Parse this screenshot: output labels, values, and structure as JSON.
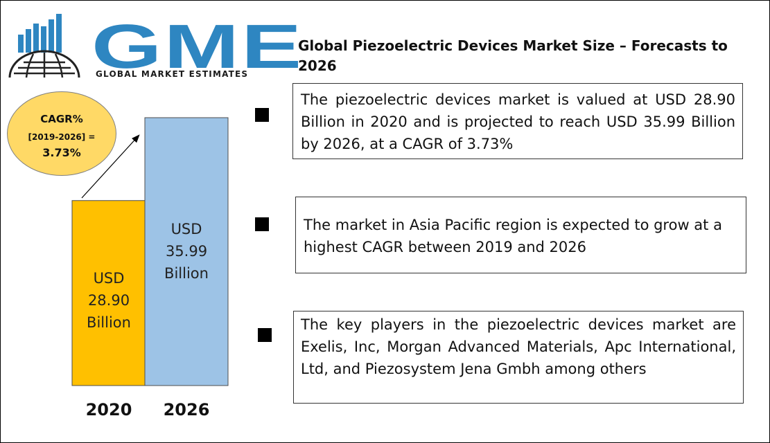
{
  "logo": {
    "wordmark": "GME",
    "tagline": "GLOBAL MARKET ESTIMATES",
    "brand_color": "#2e86c1"
  },
  "title": "Global Piezoelectric Devices Market Size – Forecasts to 2026",
  "cagr": {
    "label": "CAGR%",
    "period": "[2019-2026] =",
    "value": "3.73%",
    "color": "#ffd966"
  },
  "info_points": [
    "The piezoelectric devices market is valued at USD 28.90 Billion in 2020 and is projected to reach USD 35.99 Billion by 2026, at a CAGR of 3.73%",
    "The market in Asia Pacific region is expected to grow at a highest CAGR between 2019 and 2026",
    "The key players in the piezoelectric devices market are Exelis, Inc, Morgan Advanced Materials, Apc International, Ltd, and Piezosystem Jena Gmbh among others"
  ],
  "chart_data": {
    "type": "bar",
    "categories": [
      "2020",
      "2026"
    ],
    "values": [
      28.9,
      35.99
    ],
    "bar_labels": [
      [
        "USD",
        "28.90",
        "Billion"
      ],
      [
        "USD",
        "35.99",
        "Billion"
      ]
    ],
    "colors": [
      "#ffc000",
      "#9dc3e6"
    ],
    "unit": "USD Billion",
    "grid": false,
    "legend": "none"
  }
}
